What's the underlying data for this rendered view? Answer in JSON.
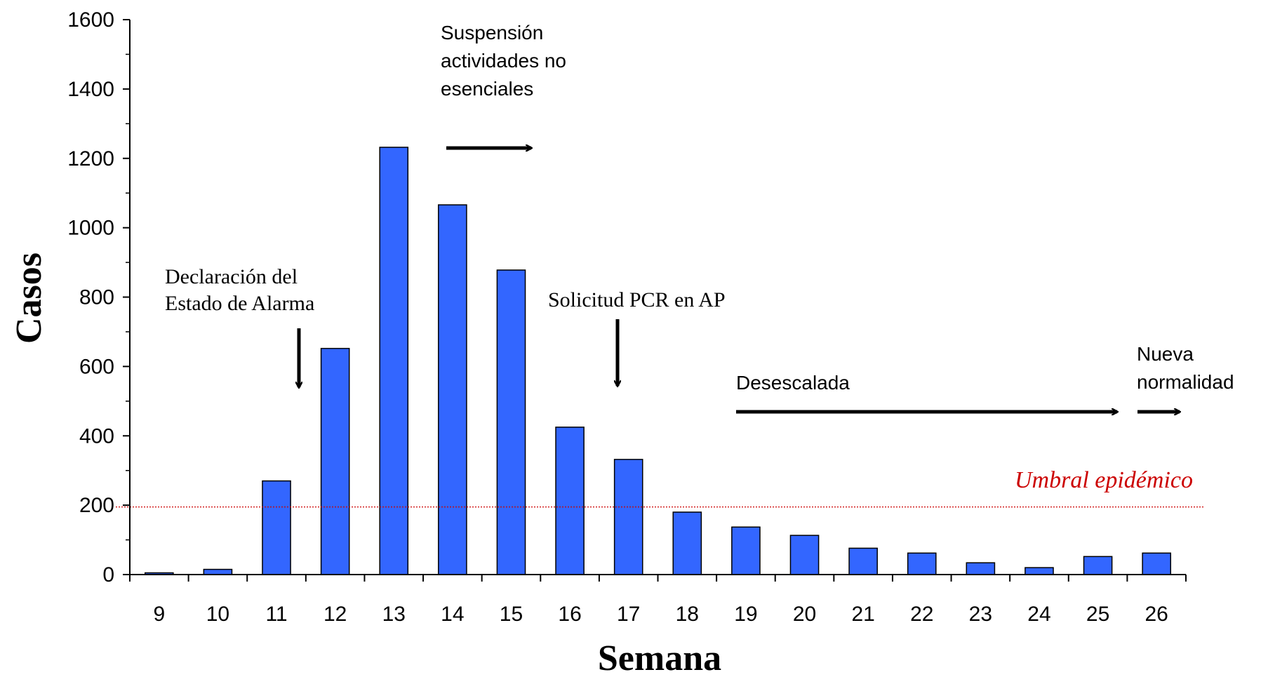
{
  "chart_data": {
    "type": "bar",
    "title": "",
    "xlabel": "Semana",
    "ylabel": "Casos",
    "ylim": [
      0,
      1600
    ],
    "yticks": [
      0,
      200,
      400,
      600,
      800,
      1000,
      1200,
      1400,
      1600
    ],
    "categories": [
      "9",
      "10",
      "11",
      "12",
      "13",
      "14",
      "15",
      "16",
      "17",
      "18",
      "19",
      "20",
      "21",
      "22",
      "23",
      "24",
      "25",
      "26"
    ],
    "values": [
      5,
      15,
      270,
      652,
      1232,
      1066,
      878,
      425,
      332,
      180,
      137,
      113,
      76,
      62,
      34,
      20,
      52,
      62
    ],
    "bar_color": "#3366ff",
    "grid": false,
    "threshold": {
      "label": "Umbral epidémico",
      "value": 195,
      "color": "#cc0000"
    },
    "annotations": {
      "alarma": "Declaración del\nEstado de Alarma",
      "suspension": "Suspensión\nactividades no\nesenciales",
      "pcr": "Solicitud PCR en AP",
      "desescalada": "Desescalada",
      "nueva": "Nueva\nnormalidad"
    }
  }
}
